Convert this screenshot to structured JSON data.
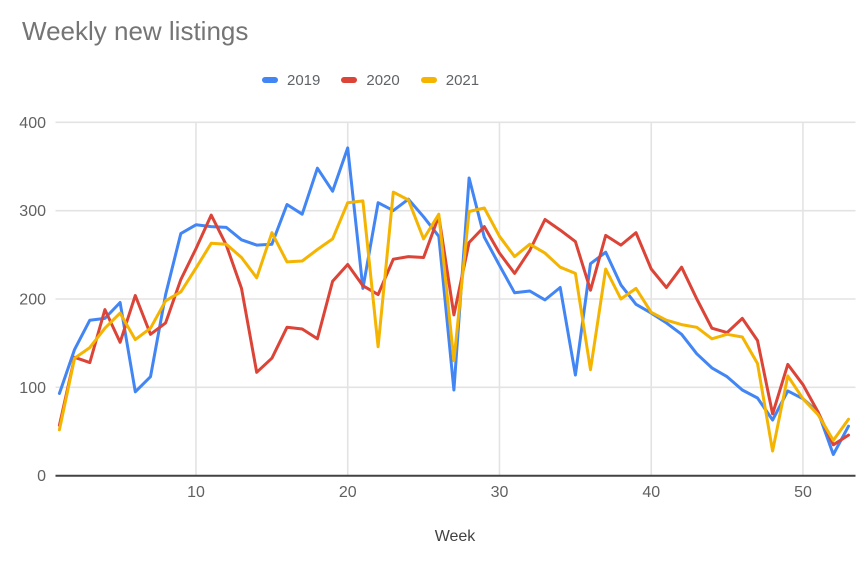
{
  "title": "Weekly new listings",
  "legend": {
    "items": [
      "2019",
      "2020",
      "2021"
    ]
  },
  "colors": {
    "series_2019": "#4285F4",
    "series_2020": "#DB4437",
    "series_2021": "#F4B400",
    "gridline": "#e3e3e3",
    "axis_line": "#424242",
    "tick_label": "#616161",
    "title_text": "#757575",
    "legend_text": "#5f6368"
  },
  "chart_data": {
    "type": "line",
    "title": "Weekly new listings",
    "xlabel": "Week",
    "ylabel": "",
    "xlim": [
      1,
      53
    ],
    "ylim": [
      0,
      400
    ],
    "x_ticks": [
      10,
      20,
      30,
      40,
      50
    ],
    "y_ticks": [
      0,
      100,
      200,
      300,
      400
    ],
    "grid": true,
    "legend_position": "top",
    "x": [
      1,
      2,
      3,
      4,
      5,
      6,
      7,
      8,
      9,
      10,
      11,
      12,
      13,
      14,
      15,
      16,
      17,
      18,
      19,
      20,
      21,
      22,
      23,
      24,
      25,
      26,
      27,
      28,
      29,
      30,
      31,
      32,
      33,
      34,
      35,
      36,
      37,
      38,
      39,
      40,
      41,
      42,
      43,
      44,
      45,
      46,
      47,
      48,
      49,
      50,
      51,
      52,
      53
    ],
    "series": [
      {
        "name": "2019",
        "color": "#4285F4",
        "values": [
          93,
          143,
          176,
          178,
          196,
          95,
          112,
          205,
          274,
          284,
          282,
          281,
          267,
          261,
          262,
          307,
          296,
          348,
          322,
          371,
          212,
          309,
          300,
          313,
          293,
          271,
          97,
          337,
          270,
          238,
          207,
          209,
          199,
          213,
          114,
          240,
          253,
          216,
          194,
          184,
          173,
          160,
          138,
          122,
          112,
          97,
          88,
          63,
          96,
          87,
          72,
          24,
          56
        ]
      },
      {
        "name": "2020",
        "color": "#DB4437",
        "values": [
          57,
          134,
          128,
          188,
          151,
          204,
          160,
          173,
          222,
          257,
          295,
          261,
          212,
          117,
          133,
          168,
          166,
          155,
          220,
          239,
          215,
          205,
          245,
          248,
          247,
          294,
          182,
          264,
          282,
          252,
          229,
          255,
          290,
          278,
          265,
          210,
          272,
          261,
          275,
          234,
          213,
          236,
          200,
          167,
          162,
          178,
          153,
          70,
          126,
          103,
          72,
          35,
          46
        ]
      },
      {
        "name": "2021",
        "color": "#F4B400",
        "values": [
          52,
          133,
          145,
          167,
          184,
          154,
          167,
          198,
          208,
          235,
          263,
          262,
          247,
          224,
          275,
          242,
          243,
          256,
          268,
          309,
          311,
          146,
          321,
          312,
          268,
          296,
          130,
          299,
          303,
          271,
          248,
          262,
          252,
          236,
          229,
          120,
          234,
          200,
          212,
          185,
          176,
          171,
          168,
          155,
          160,
          157,
          127,
          28,
          113,
          87,
          69,
          40,
          64
        ]
      }
    ]
  }
}
